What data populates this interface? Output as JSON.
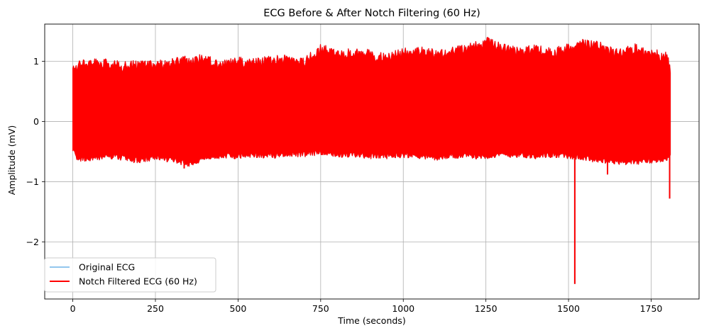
{
  "chart_data": {
    "type": "line",
    "title": "ECG Before & After Notch Filtering (60 Hz)",
    "xlabel": "Time (seconds)",
    "ylabel": "Amplitude (mV)",
    "xlim": [
      -85,
      1895
    ],
    "ylim": [
      -2.95,
      1.62
    ],
    "x_ticks": [
      0,
      250,
      500,
      750,
      1000,
      1250,
      1500,
      1750
    ],
    "x_tick_labels": [
      "0",
      "250",
      "500",
      "750",
      "1000",
      "1250",
      "1500",
      "1750"
    ],
    "y_ticks": [
      -2,
      -1,
      0,
      1
    ],
    "y_tick_labels": [
      "−2",
      "−1",
      "0",
      "1"
    ],
    "grid": true,
    "legend_position": "lower-left",
    "series": [
      {
        "name": "Original ECG",
        "color": "#6fb3e8",
        "x_range": [
          0,
          1808
        ],
        "upper_envelope": [
          [
            0,
            0.93
          ],
          [
            10,
            1.02
          ],
          [
            50,
            1.05
          ],
          [
            100,
            1.05
          ],
          [
            150,
            1.0
          ],
          [
            200,
            1.02
          ],
          [
            250,
            1.02
          ],
          [
            300,
            1.05
          ],
          [
            350,
            1.1
          ],
          [
            400,
            1.12
          ],
          [
            450,
            1.02
          ],
          [
            500,
            1.08
          ],
          [
            550,
            1.05
          ],
          [
            600,
            1.1
          ],
          [
            650,
            1.14
          ],
          [
            700,
            1.08
          ],
          [
            750,
            1.3
          ],
          [
            800,
            1.2
          ],
          [
            850,
            1.22
          ],
          [
            900,
            1.2
          ],
          [
            950,
            1.14
          ],
          [
            1000,
            1.22
          ],
          [
            1050,
            1.25
          ],
          [
            1100,
            1.2
          ],
          [
            1150,
            1.25
          ],
          [
            1200,
            1.3
          ],
          [
            1250,
            1.42
          ],
          [
            1300,
            1.3
          ],
          [
            1350,
            1.25
          ],
          [
            1400,
            1.28
          ],
          [
            1450,
            1.22
          ],
          [
            1500,
            1.3
          ],
          [
            1550,
            1.38
          ],
          [
            1600,
            1.32
          ],
          [
            1650,
            1.2
          ],
          [
            1700,
            1.3
          ],
          [
            1750,
            1.22
          ],
          [
            1800,
            1.15
          ],
          [
            1808,
            0.92
          ]
        ],
        "lower_envelope": [
          [
            0,
            -0.5
          ],
          [
            10,
            -0.65
          ],
          [
            50,
            -0.68
          ],
          [
            100,
            -0.62
          ],
          [
            150,
            -0.65
          ],
          [
            200,
            -0.7
          ],
          [
            250,
            -0.65
          ],
          [
            300,
            -0.68
          ],
          [
            350,
            -0.75
          ],
          [
            400,
            -0.65
          ],
          [
            450,
            -0.62
          ],
          [
            500,
            -0.62
          ],
          [
            550,
            -0.6
          ],
          [
            600,
            -0.62
          ],
          [
            650,
            -0.58
          ],
          [
            700,
            -0.6
          ],
          [
            750,
            -0.55
          ],
          [
            800,
            -0.6
          ],
          [
            850,
            -0.6
          ],
          [
            900,
            -0.62
          ],
          [
            950,
            -0.62
          ],
          [
            1000,
            -0.6
          ],
          [
            1050,
            -0.62
          ],
          [
            1100,
            -0.65
          ],
          [
            1150,
            -0.62
          ],
          [
            1200,
            -0.62
          ],
          [
            1250,
            -0.62
          ],
          [
            1300,
            -0.6
          ],
          [
            1350,
            -0.6
          ],
          [
            1400,
            -0.62
          ],
          [
            1450,
            -0.6
          ],
          [
            1500,
            -0.62
          ],
          [
            1550,
            -0.65
          ],
          [
            1600,
            -0.7
          ],
          [
            1650,
            -0.72
          ],
          [
            1700,
            -0.72
          ],
          [
            1750,
            -0.7
          ],
          [
            1800,
            -0.65
          ],
          [
            1808,
            -0.6
          ]
        ],
        "spikes": [
          [
            1519,
            -2.7
          ],
          [
            1806,
            -1.28
          ],
          [
            1618,
            -0.88
          ],
          [
            337,
            -0.78
          ]
        ]
      },
      {
        "name": "Notch Filtered ECG (60 Hz)",
        "color": "#ff0000",
        "x_range": [
          0,
          1808
        ],
        "upper_envelope": [
          [
            0,
            0.93
          ],
          [
            10,
            1.02
          ],
          [
            50,
            1.05
          ],
          [
            100,
            1.05
          ],
          [
            150,
            1.0
          ],
          [
            200,
            1.02
          ],
          [
            250,
            1.02
          ],
          [
            300,
            1.05
          ],
          [
            350,
            1.1
          ],
          [
            400,
            1.12
          ],
          [
            450,
            1.02
          ],
          [
            500,
            1.08
          ],
          [
            550,
            1.05
          ],
          [
            600,
            1.1
          ],
          [
            650,
            1.14
          ],
          [
            700,
            1.08
          ],
          [
            750,
            1.3
          ],
          [
            800,
            1.2
          ],
          [
            850,
            1.22
          ],
          [
            900,
            1.2
          ],
          [
            950,
            1.14
          ],
          [
            1000,
            1.22
          ],
          [
            1050,
            1.25
          ],
          [
            1100,
            1.2
          ],
          [
            1150,
            1.25
          ],
          [
            1200,
            1.3
          ],
          [
            1250,
            1.42
          ],
          [
            1300,
            1.3
          ],
          [
            1350,
            1.25
          ],
          [
            1400,
            1.28
          ],
          [
            1450,
            1.22
          ],
          [
            1500,
            1.3
          ],
          [
            1550,
            1.38
          ],
          [
            1600,
            1.32
          ],
          [
            1650,
            1.2
          ],
          [
            1700,
            1.3
          ],
          [
            1750,
            1.22
          ],
          [
            1800,
            1.15
          ],
          [
            1808,
            0.92
          ]
        ],
        "lower_envelope": [
          [
            0,
            -0.5
          ],
          [
            10,
            -0.65
          ],
          [
            50,
            -0.68
          ],
          [
            100,
            -0.62
          ],
          [
            150,
            -0.65
          ],
          [
            200,
            -0.7
          ],
          [
            250,
            -0.65
          ],
          [
            300,
            -0.68
          ],
          [
            350,
            -0.75
          ],
          [
            400,
            -0.65
          ],
          [
            450,
            -0.62
          ],
          [
            500,
            -0.62
          ],
          [
            550,
            -0.6
          ],
          [
            600,
            -0.62
          ],
          [
            650,
            -0.58
          ],
          [
            700,
            -0.6
          ],
          [
            750,
            -0.55
          ],
          [
            800,
            -0.6
          ],
          [
            850,
            -0.6
          ],
          [
            900,
            -0.62
          ],
          [
            950,
            -0.62
          ],
          [
            1000,
            -0.6
          ],
          [
            1050,
            -0.62
          ],
          [
            1100,
            -0.65
          ],
          [
            1150,
            -0.62
          ],
          [
            1200,
            -0.62
          ],
          [
            1250,
            -0.62
          ],
          [
            1300,
            -0.6
          ],
          [
            1350,
            -0.6
          ],
          [
            1400,
            -0.62
          ],
          [
            1450,
            -0.6
          ],
          [
            1500,
            -0.62
          ],
          [
            1550,
            -0.65
          ],
          [
            1600,
            -0.7
          ],
          [
            1650,
            -0.72
          ],
          [
            1700,
            -0.72
          ],
          [
            1750,
            -0.7
          ],
          [
            1800,
            -0.65
          ],
          [
            1808,
            -0.6
          ]
        ],
        "spikes": [
          [
            1519,
            -2.7
          ],
          [
            1806,
            -1.28
          ],
          [
            1618,
            -0.88
          ],
          [
            337,
            -0.78
          ]
        ]
      }
    ]
  }
}
